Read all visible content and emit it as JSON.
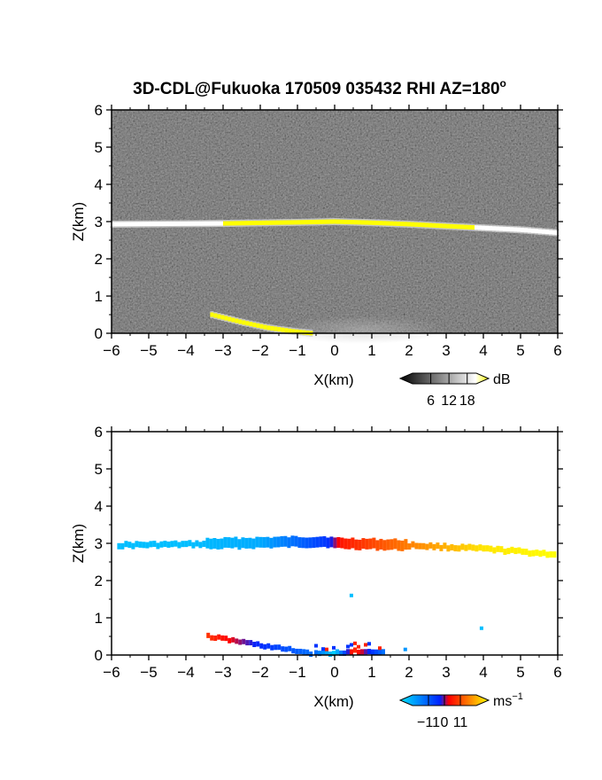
{
  "title_main": "3D-CDL@Fukuoka 170509 035432 RHI AZ=180",
  "title_deg": "o",
  "chart_data": [
    {
      "type": "heatmap",
      "quantity": "backscatter intensity",
      "xlabel": "X(km)",
      "ylabel": "Z(km)",
      "xlim": [
        -6,
        6
      ],
      "ylim": [
        0,
        6
      ],
      "xticks": [
        "−6",
        "−5",
        "−4",
        "−3",
        "−2",
        "−1",
        "0",
        "1",
        "2",
        "3",
        "4",
        "5",
        "6"
      ],
      "yticks": [
        "0",
        "1",
        "2",
        "3",
        "4",
        "5",
        "6"
      ],
      "background": "noise (grey/black)",
      "colorbar": {
        "unit": "dB",
        "ticks": [
          "6",
          "12",
          "18"
        ],
        "values": [
          6,
          12,
          18
        ],
        "colors": [
          "#000000",
          "#ffffff",
          "#ffff00"
        ]
      },
      "features": [
        {
          "name": "cloud-layer",
          "x": [
            -6.0,
            -3.0,
            -1.0,
            0.0,
            1.0,
            2.0,
            3.0,
            4.0,
            5.0,
            6.0
          ],
          "z": [
            2.93,
            2.95,
            2.98,
            3.0,
            2.97,
            2.93,
            2.88,
            2.83,
            2.78,
            2.7
          ],
          "peak_dB": 18
        },
        {
          "name": "low-layer",
          "x": [
            -3.3,
            -2.5,
            -1.8,
            -1.1,
            -0.6
          ],
          "z": [
            0.5,
            0.3,
            0.15,
            0.05,
            0.0
          ],
          "peak_dB": 18
        },
        {
          "name": "near-ground-echo",
          "x": [
            0.0,
            2.0
          ],
          "z": [
            0.0,
            0.25
          ],
          "peak_dB": 10
        }
      ]
    },
    {
      "type": "heatmap",
      "quantity": "Doppler velocity",
      "xlabel": "X(km)",
      "ylabel": "Z(km)",
      "xlim": [
        -6,
        6
      ],
      "ylim": [
        0,
        6
      ],
      "xticks": [
        "−6",
        "−5",
        "−4",
        "−3",
        "−2",
        "−1",
        "0",
        "1",
        "2",
        "3",
        "4",
        "5",
        "6"
      ],
      "yticks": [
        "0",
        "1",
        "2",
        "3",
        "4",
        "5",
        "6"
      ],
      "colorbar": {
        "unit": "ms",
        "unit_exp": "−1",
        "ticks": [
          "−11",
          "0",
          "11"
        ],
        "values": [
          -11,
          0,
          11
        ],
        "colors": [
          "#00e5ff",
          "#0022ff",
          "#ff0000",
          "#ffff00"
        ]
      },
      "features": [
        {
          "name": "cloud-layer-velocity",
          "x": [
            -5.8,
            -4.0,
            -2.0,
            -0.2,
            0.0,
            0.2,
            2.0,
            4.0,
            6.0
          ],
          "z": [
            2.95,
            2.97,
            3.02,
            3.05,
            3.0,
            3.0,
            2.95,
            2.85,
            2.7
          ],
          "velocity_ms": [
            -9,
            -9,
            -8,
            -2,
            0,
            2,
            6,
            10,
            11
          ]
        },
        {
          "name": "low-layer-velocity",
          "x": [
            -3.4,
            -2.5,
            -1.5,
            -0.6
          ],
          "z": [
            0.5,
            0.35,
            0.18,
            0.05
          ],
          "velocity_ms": [
            3,
            0,
            -3,
            -5
          ]
        },
        {
          "name": "near-ground-velocity",
          "x": [
            -0.5,
            0.0,
            0.5,
            1.4
          ],
          "z": [
            0.05,
            0.05,
            0.1,
            0.05
          ],
          "velocity_ms": [
            -5,
            -10,
            3,
            -6
          ]
        },
        {
          "name": "isolated-echo-1",
          "x": [
            0.45
          ],
          "z": [
            1.6
          ],
          "velocity_ms": [
            -9
          ]
        },
        {
          "name": "isolated-echo-2",
          "x": [
            3.95
          ],
          "z": [
            0.72
          ],
          "velocity_ms": [
            -9
          ]
        },
        {
          "name": "isolated-echo-3",
          "x": [
            1.9
          ],
          "z": [
            0.15
          ],
          "velocity_ms": [
            -7
          ]
        }
      ]
    }
  ]
}
